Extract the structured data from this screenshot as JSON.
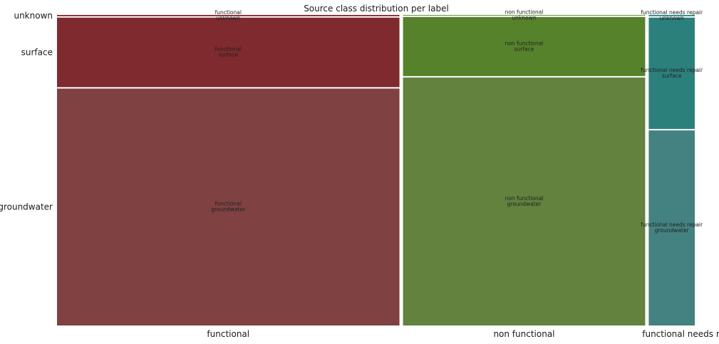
{
  "chart_data": {
    "type": "mosaic",
    "title": "Source class distribution per label",
    "xlabel": "",
    "ylabel": "",
    "legend": "none",
    "categories": [
      "functional",
      "non functional",
      "functional needs repair"
    ],
    "category_shares": [
      0.543,
      0.384,
      0.073
    ],
    "y_categories": [
      "groundwater",
      "surface",
      "unknown"
    ],
    "series": [
      {
        "name": "functional",
        "color": "#7f4141",
        "values": [
          0.77,
          0.226,
          0.004
        ]
      },
      {
        "name": "non functional",
        "color": "#62823e",
        "values": [
          0.806,
          0.192,
          0.002
        ]
      },
      {
        "name": "functional needs repair",
        "color": "#438280",
        "values": [
          0.634,
          0.362,
          0.004
        ]
      }
    ],
    "tile_colors": {
      "functional": {
        "groundwater": "#7f4141",
        "surface": "#7f2a2e",
        "unknown": "#7f1c1c"
      },
      "non functional": {
        "groundwater": "#62823e",
        "surface": "#55822b",
        "unknown": "#4b821d"
      },
      "functional needs repair": {
        "groundwater": "#438280",
        "surface": "#2b807c",
        "unknown": "#1e827c"
      }
    }
  }
}
